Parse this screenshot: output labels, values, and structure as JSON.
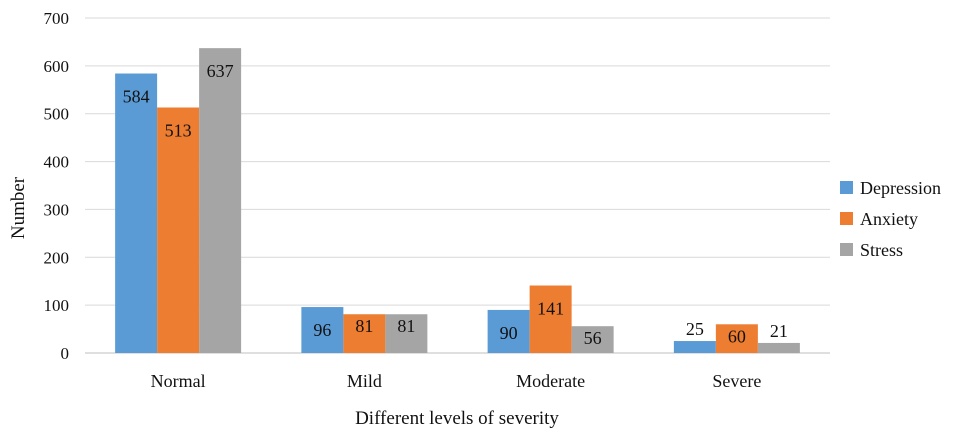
{
  "chart_data": {
    "type": "bar",
    "title": "",
    "xlabel": "Different levels of severity",
    "ylabel": "Number",
    "ylim": [
      0,
      700
    ],
    "yticks": [
      0,
      100,
      200,
      300,
      400,
      500,
      600,
      700
    ],
    "categories": [
      "Normal",
      "Mild",
      "Moderate",
      "Severe"
    ],
    "series": [
      {
        "name": "Depression",
        "color": "#5B9BD5",
        "values": [
          584,
          96,
          90,
          25
        ]
      },
      {
        "name": "Anxiety",
        "color": "#ED7D31",
        "values": [
          513,
          81,
          141,
          60
        ]
      },
      {
        "name": "Stress",
        "color": "#A5A5A5",
        "values": [
          637,
          81,
          56,
          21
        ]
      }
    ],
    "data_labels": true,
    "grid": true,
    "legend_position": "right"
  }
}
